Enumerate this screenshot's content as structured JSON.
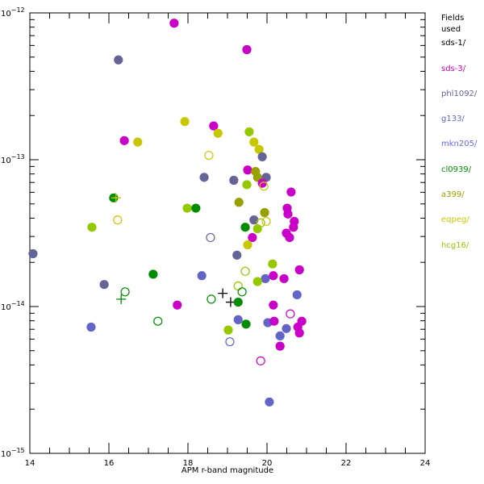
{
  "chart_data": {
    "type": "scatter",
    "title": "",
    "xlabel": "APM r-band magnitude",
    "ylabel": "",
    "xlim": [
      14,
      24
    ],
    "ylim": [
      1e-15,
      1e-12
    ],
    "yscale": "log",
    "x_ticks": [
      "14",
      "16",
      "18",
      "20",
      "22",
      "24"
    ],
    "y_ticks": [
      {
        "base": "10",
        "exp": "−12",
        "log10": -12
      },
      {
        "base": "10",
        "exp": "−13",
        "log10": -13
      },
      {
        "base": "10",
        "exp": "−14",
        "log10": -14
      },
      {
        "base": "10",
        "exp": "−15",
        "log10": -15
      }
    ],
    "legend_title": "Fields used",
    "legend_placement": "right",
    "series": [
      {
        "name": "sds-1/",
        "color": "#000000"
      },
      {
        "name": "sds-3/",
        "color": "#c800c8"
      },
      {
        "name": "phl1092/",
        "color": "#646496"
      },
      {
        "name": "g133/",
        "color": "#6464c8"
      },
      {
        "name": "mkn205/",
        "color": "#6464ff"
      },
      {
        "name": "cl0939/",
        "color": "#008c00"
      },
      {
        "name": "a399/",
        "color": "#96a000"
      },
      {
        "name": "eqpeg/",
        "color": "#c8c800"
      },
      {
        "name": "hcg16/",
        "color": "#96c800"
      }
    ],
    "points_fields": [
      "x_mag",
      "log10_flux",
      "series_index",
      "marker"
    ],
    "points": [
      [
        17.65,
        -12.07,
        1,
        "filled"
      ],
      [
        19.49,
        -12.25,
        1,
        "filled"
      ],
      [
        16.24,
        -12.32,
        2,
        "filled"
      ],
      [
        14.08,
        -13.64,
        2,
        "filled"
      ],
      [
        17.92,
        -12.74,
        7,
        "filled"
      ],
      [
        16.73,
        -12.88,
        7,
        "filled"
      ],
      [
        16.39,
        -12.87,
        1,
        "filled"
      ],
      [
        18.65,
        -12.77,
        1,
        "filled"
      ],
      [
        18.76,
        -12.82,
        7,
        "filled"
      ],
      [
        18.53,
        -12.97,
        7,
        "open"
      ],
      [
        18.41,
        -13.12,
        2,
        "filled"
      ],
      [
        16.12,
        -13.26,
        5,
        "filled"
      ],
      [
        16.18,
        -13.26,
        7,
        "plus"
      ],
      [
        17.98,
        -13.33,
        8,
        "filled"
      ],
      [
        18.2,
        -13.33,
        5,
        "filled"
      ],
      [
        16.22,
        -13.41,
        7,
        "open"
      ],
      [
        15.57,
        -13.46,
        8,
        "filled"
      ],
      [
        19.55,
        -12.81,
        8,
        "filled"
      ],
      [
        19.67,
        -12.88,
        7,
        "filled"
      ],
      [
        19.8,
        -12.93,
        7,
        "filled"
      ],
      [
        19.88,
        -12.98,
        2,
        "filled"
      ],
      [
        19.51,
        -13.07,
        1,
        "filled"
      ],
      [
        19.71,
        -13.08,
        6,
        "filled"
      ],
      [
        19.76,
        -13.12,
        6,
        "filled"
      ],
      [
        19.98,
        -13.12,
        2,
        "filled"
      ],
      [
        19.16,
        -13.14,
        2,
        "filled"
      ],
      [
        19.49,
        -13.17,
        8,
        "filled"
      ],
      [
        19.88,
        -13.16,
        1,
        "filled"
      ],
      [
        19.92,
        -13.18,
        7,
        "open"
      ],
      [
        20.61,
        -13.22,
        1,
        "filled"
      ],
      [
        19.29,
        -13.29,
        6,
        "filled"
      ],
      [
        19.94,
        -13.36,
        6,
        "filled"
      ],
      [
        20.51,
        -13.33,
        1,
        "filled"
      ],
      [
        20.53,
        -13.37,
        1,
        "filled"
      ],
      [
        19.67,
        -13.41,
        2,
        "filled"
      ],
      [
        19.84,
        -13.43,
        8,
        "open"
      ],
      [
        19.98,
        -13.42,
        7,
        "open"
      ],
      [
        20.69,
        -13.42,
        1,
        "filled"
      ],
      [
        20.67,
        -13.46,
        1,
        "filled"
      ],
      [
        19.45,
        -13.46,
        5,
        "filled"
      ],
      [
        19.76,
        -13.47,
        8,
        "filled"
      ],
      [
        20.49,
        -13.5,
        1,
        "filled"
      ],
      [
        20.57,
        -13.53,
        1,
        "filled"
      ],
      [
        19.63,
        -13.53,
        1,
        "filled"
      ],
      [
        19.51,
        -13.58,
        7,
        "filled"
      ],
      [
        19.24,
        -13.65,
        2,
        "filled"
      ],
      [
        20.14,
        -13.71,
        8,
        "filled"
      ],
      [
        20.82,
        -13.75,
        1,
        "filled"
      ],
      [
        19.45,
        -13.76,
        8,
        "open"
      ],
      [
        20.16,
        -13.79,
        1,
        "filled"
      ],
      [
        19.96,
        -13.81,
        3,
        "filled"
      ],
      [
        19.76,
        -13.83,
        8,
        "filled"
      ],
      [
        20.43,
        -13.81,
        1,
        "filled"
      ],
      [
        19.27,
        -13.86,
        8,
        "open"
      ],
      [
        19.37,
        -13.9,
        5,
        "open"
      ],
      [
        18.88,
        -13.91,
        0,
        "plus"
      ],
      [
        19.08,
        -13.97,
        0,
        "plus"
      ],
      [
        19.27,
        -13.97,
        5,
        "filled"
      ],
      [
        20.76,
        -13.92,
        3,
        "filled"
      ],
      [
        20.16,
        -13.99,
        1,
        "filled"
      ],
      [
        20.59,
        -14.05,
        1,
        "open"
      ],
      [
        19.27,
        -14.09,
        3,
        "filled"
      ],
      [
        19.47,
        -14.12,
        5,
        "filled"
      ],
      [
        20.02,
        -14.11,
        3,
        "filled"
      ],
      [
        20.18,
        -14.1,
        1,
        "filled"
      ],
      [
        20.88,
        -14.1,
        1,
        "filled"
      ],
      [
        20.49,
        -14.15,
        3,
        "filled"
      ],
      [
        20.78,
        -14.14,
        1,
        "filled"
      ],
      [
        20.82,
        -14.18,
        1,
        "filled"
      ],
      [
        19.02,
        -14.16,
        8,
        "filled"
      ],
      [
        20.33,
        -14.2,
        3,
        "filled"
      ],
      [
        20.33,
        -14.27,
        1,
        "filled"
      ],
      [
        19.06,
        -14.24,
        3,
        "open"
      ],
      [
        19.84,
        -14.37,
        1,
        "open"
      ],
      [
        18.57,
        -13.53,
        2,
        "open"
      ],
      [
        17.12,
        -13.78,
        5,
        "filled"
      ],
      [
        18.35,
        -13.79,
        3,
        "filled"
      ],
      [
        15.88,
        -13.85,
        2,
        "filled"
      ],
      [
        16.41,
        -13.9,
        5,
        "open"
      ],
      [
        16.31,
        -13.95,
        5,
        "plus"
      ],
      [
        18.59,
        -13.95,
        5,
        "open"
      ],
      [
        17.73,
        -13.99,
        1,
        "filled"
      ],
      [
        17.24,
        -14.1,
        5,
        "open"
      ],
      [
        15.55,
        -14.14,
        3,
        "filled"
      ],
      [
        20.06,
        -14.65,
        3,
        "filled"
      ]
    ]
  }
}
